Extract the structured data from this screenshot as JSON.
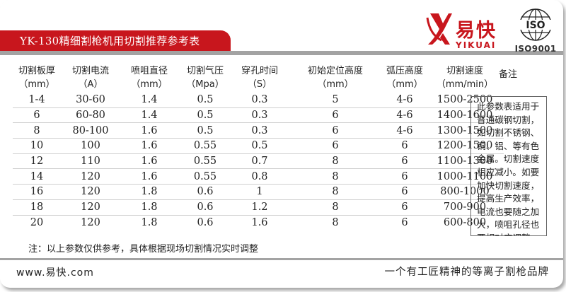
{
  "title": "YK-130精细割枪机用切割推荐参考表",
  "brand": {
    "name": "易快",
    "pinyin": "YIKUAI",
    "color": "#c8161d",
    "mark_icon": "yk-logo-mark",
    "iso_logo_text": "ISO",
    "iso_label": "ISO9001"
  },
  "table": {
    "headers": [
      {
        "line1": "切割板厚",
        "line2": "（mm）"
      },
      {
        "line1": "切割电流",
        "line2": "（A）"
      },
      {
        "line1": "喷咀直径",
        "line2": "（mm）"
      },
      {
        "line1": "切割气压",
        "line2": "（Mpa）"
      },
      {
        "line1": "穿孔时间",
        "line2": "（S）"
      },
      {
        "line1": "初始定位高度",
        "line2": "（mm）"
      },
      {
        "line1": "弧压高度",
        "line2": "（mm）"
      },
      {
        "line1": "切割速度",
        "line2": "（mm/min）"
      }
    ],
    "rows": [
      [
        "1-4",
        "30-60",
        "1.4",
        "0.5",
        "0.3",
        "5",
        "4-6",
        "1500-2500"
      ],
      [
        "6",
        "60-80",
        "1.4",
        "0.5",
        "0.3",
        "6",
        "4-6",
        "1400-1600"
      ],
      [
        "8",
        "80-100",
        "1.6",
        "0.5",
        "0.3",
        "6",
        "4-6",
        "1300-1500"
      ],
      [
        "10",
        "100",
        "1.6",
        "0.55",
        "0.5",
        "6",
        "6",
        "1200-1500"
      ],
      [
        "12",
        "110",
        "1.6",
        "0.55",
        "0.7",
        "8",
        "6",
        "1100-1300"
      ],
      [
        "14",
        "120",
        "1.6",
        "0.55",
        "0.8",
        "8",
        "6",
        "1000-1100"
      ],
      [
        "16",
        "120",
        "1.8",
        "0.6",
        "1",
        "8",
        "6",
        "800-1000"
      ],
      [
        "18",
        "120",
        "1.8",
        "0.6",
        "1.2",
        "8",
        "6",
        "700-900"
      ],
      [
        "20",
        "120",
        "1.8",
        "0.6",
        "1.6",
        "8",
        "6",
        "600-800"
      ]
    ]
  },
  "remarks": {
    "header": "备注",
    "lines": [
      "此参数表适用于",
      "普通碳钢切割，",
      "如切割不锈钢、",
      "铜、铝、等有色",
      "金属。切割速度",
      "相应减小。如要",
      "加快切割速度，",
      "提高生产效率，",
      "电流也要随之加",
      "大，喷咀孔径也",
      "要相对应调整。"
    ]
  },
  "note": "注：以上参数仅供参考，具体根据现场切割情况实时调整",
  "footer": {
    "website": "www.易快.com",
    "slogan": "一个有工匠精神的等离子割枪品牌"
  }
}
